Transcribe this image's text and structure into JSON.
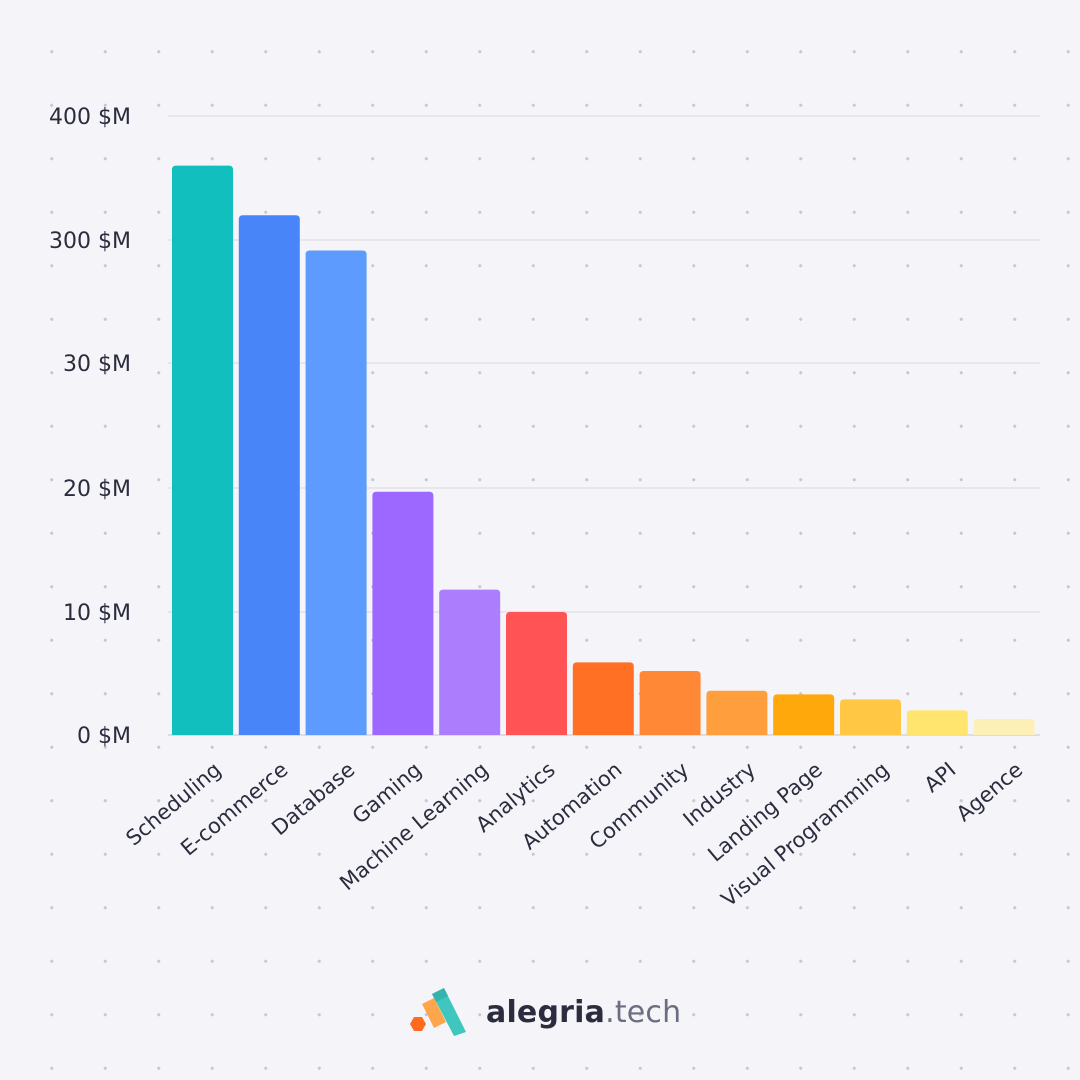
{
  "chart_data": {
    "type": "bar",
    "title": "",
    "xlabel": "",
    "ylabel": "",
    "y_ticks": [
      "0 $M",
      "10 $M",
      "20 $M",
      "30 $M",
      "300 $M",
      "400 $M"
    ],
    "y_tick_values": [
      0,
      10,
      20,
      30,
      300,
      400
    ],
    "grid": true,
    "legend": "none",
    "categories": [
      "Scheduling",
      "E-commerce",
      "Database",
      "Gaming",
      "Machine Learning",
      "Analytics",
      "Automation",
      "Community",
      "Industry",
      "Landing Page",
      "Visual Programming",
      "API",
      "Agence"
    ],
    "values": [
      360,
      320,
      277,
      19.7,
      11.8,
      10,
      5.9,
      5.2,
      3.6,
      3.3,
      2.9,
      2,
      1.3
    ],
    "colors": [
      "#11bfbf",
      "#4785f8",
      "#5e9bff",
      "#9d68ff",
      "#ac7efd",
      "#ff5355",
      "#ff6f24",
      "#ff8836",
      "#ff9e3d",
      "#ffa80b",
      "#ffc744",
      "#ffe56d",
      "#fdf0b6"
    ]
  },
  "brand": {
    "name": "alegria",
    "tld": ".tech"
  }
}
